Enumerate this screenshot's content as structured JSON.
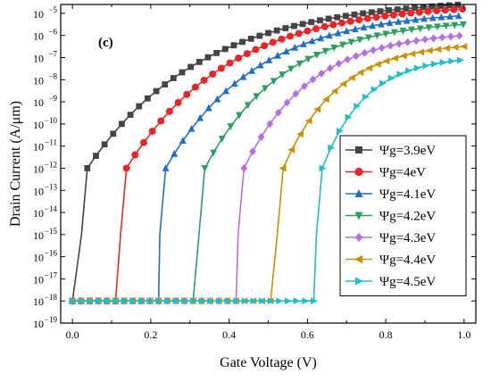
{
  "chart_data": {
    "type": "line",
    "panel_label": "(c)",
    "xlabel": "Gate Voltage (V)",
    "ylabel": "Drain Current (A/μm)",
    "xlim": [
      -0.03,
      1.03
    ],
    "ylim_log10": [
      -19,
      -4.6
    ],
    "y_scale": "log",
    "x_ticks": [
      0.0,
      0.2,
      0.4,
      0.6,
      0.8,
      1.0
    ],
    "x_tick_labels": [
      "0.0",
      "0.2",
      "0.4",
      "0.6",
      "0.8",
      "1.0"
    ],
    "y_tick_exponents": [
      -19,
      -18,
      -17,
      -16,
      -15,
      -14,
      -13,
      -12,
      -11,
      -10,
      -9,
      -8,
      -7,
      -6,
      -5
    ],
    "y_tick_base": "10",
    "legend_position": "right",
    "series": [
      {
        "name": "Ψg=3.9eV",
        "color": "#444444",
        "marker": "square",
        "vth": 0.02,
        "iend_log10": -4.6
      },
      {
        "name": "Ψg=4eV",
        "color": "#e8262a",
        "marker": "circle",
        "vth": 0.12,
        "iend_log10": -4.8
      },
      {
        "name": "Ψg=4.1eV",
        "color": "#1f6fc8",
        "marker": "triangle-up",
        "vth": 0.22,
        "iend_log10": -5.1
      },
      {
        "name": "Ψg=4.2eV",
        "color": "#2e9e5e",
        "marker": "triangle-down",
        "vth": 0.32,
        "iend_log10": -5.5
      },
      {
        "name": "Ψg=4.3eV",
        "color": "#b56fe0",
        "marker": "diamond",
        "vth": 0.42,
        "iend_log10": -6.0
      },
      {
        "name": "Ψg=4.4eV",
        "color": "#c89100",
        "marker": "triangle-left",
        "vth": 0.52,
        "iend_log10": -6.5
      },
      {
        "name": "Ψg=4.5eV",
        "color": "#1fbfc3",
        "marker": "triangle-right",
        "vth": 0.62,
        "iend_log10": -7.1
      }
    ],
    "off_current_log10": -18,
    "grid": false
  }
}
